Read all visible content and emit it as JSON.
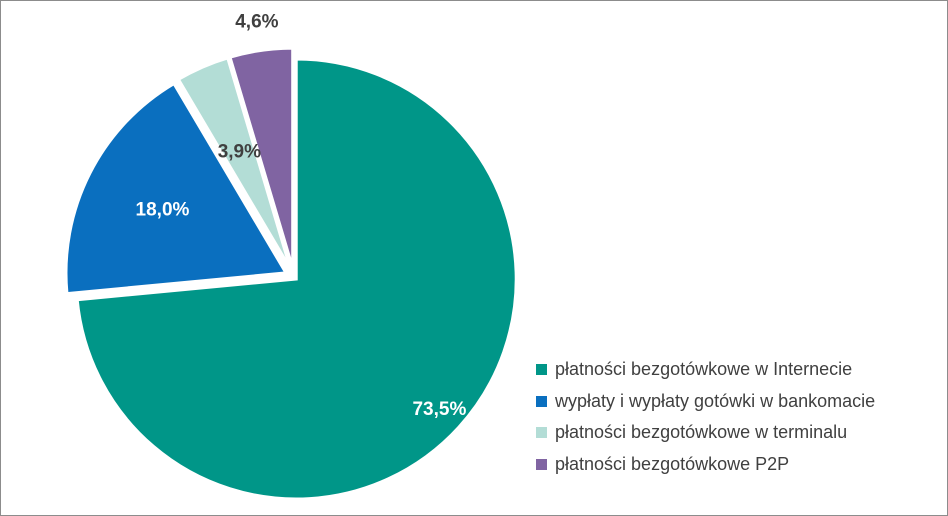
{
  "chart_data": {
    "type": "pie",
    "title": "",
    "slices": [
      {
        "name": "płatności bezgotówkowe w Internecie",
        "value": 73.5,
        "label": "73,5%",
        "color": "#009688",
        "label_color": "#ffffff"
      },
      {
        "name": "wypłaty i wypłaty gotówki w bankomacie",
        "value": 18.0,
        "label": "18,0%",
        "color": "#0a6fbf",
        "label_color": "#ffffff"
      },
      {
        "name": "płatności bezgotówkowe w terminalu",
        "value": 3.9,
        "label": "3,9%",
        "color": "#b3ddd6",
        "label_color": "#404040"
      },
      {
        "name": "płatności bezgotówkowe P2P",
        "value": 4.6,
        "label": "4,6%",
        "color": "#8064a2",
        "label_color": "#404040"
      }
    ],
    "legend_position": "bottom-right",
    "exploded": true
  }
}
